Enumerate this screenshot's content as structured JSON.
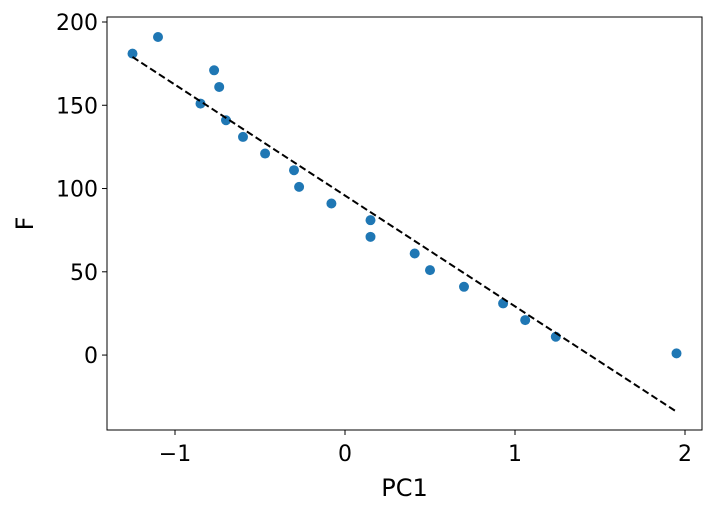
{
  "chart_data": {
    "type": "scatter",
    "xlabel": "PC1",
    "ylabel": "F",
    "xlim": [
      -1.4,
      2.1
    ],
    "ylim": [
      -45,
      203
    ],
    "xticks": [
      -1,
      0,
      1,
      2
    ],
    "xtick_labels": [
      "−1",
      "0",
      "1",
      "2"
    ],
    "yticks": [
      0,
      50,
      100,
      150,
      200
    ],
    "ytick_labels": [
      "0",
      "50",
      "100",
      "150",
      "200"
    ],
    "grid": false,
    "series": [
      {
        "type": "scatter",
        "color": "#1f77b4",
        "points": [
          {
            "x": -1.25,
            "y": 181
          },
          {
            "x": -1.1,
            "y": 191
          },
          {
            "x": -0.85,
            "y": 151
          },
          {
            "x": -0.77,
            "y": 171
          },
          {
            "x": -0.74,
            "y": 161
          },
          {
            "x": -0.7,
            "y": 141
          },
          {
            "x": -0.6,
            "y": 131
          },
          {
            "x": -0.47,
            "y": 121
          },
          {
            "x": -0.3,
            "y": 111
          },
          {
            "x": -0.27,
            "y": 101
          },
          {
            "x": -0.08,
            "y": 91
          },
          {
            "x": 0.15,
            "y": 81
          },
          {
            "x": 0.15,
            "y": 71
          },
          {
            "x": 0.41,
            "y": 61
          },
          {
            "x": 0.5,
            "y": 51
          },
          {
            "x": 0.7,
            "y": 41
          },
          {
            "x": 0.93,
            "y": 31
          },
          {
            "x": 1.06,
            "y": 21
          },
          {
            "x": 1.24,
            "y": 11
          },
          {
            "x": 1.95,
            "y": 1
          }
        ]
      },
      {
        "type": "line",
        "style": "dashed",
        "color": "#000000",
        "x": [
          -1.25,
          1.95
        ],
        "y": [
          179,
          -34
        ]
      }
    ]
  }
}
